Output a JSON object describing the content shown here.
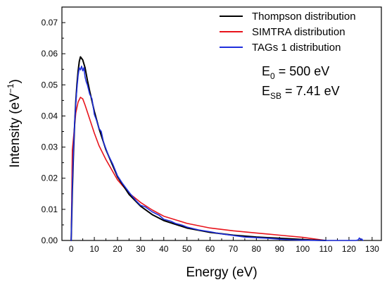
{
  "chart_data": {
    "type": "line",
    "title": "",
    "xlabel": "Energy (eV)",
    "ylabel": {
      "base": "Intensity (eV",
      "sup": "−1",
      "close": ")"
    },
    "xlim": [
      -4,
      134
    ],
    "ylim": [
      0,
      0.075
    ],
    "x_ticks": [
      0,
      10,
      20,
      30,
      40,
      50,
      60,
      70,
      80,
      90,
      100,
      110,
      120,
      130
    ],
    "y_ticks": [
      0.0,
      0.01,
      0.02,
      0.03,
      0.04,
      0.05,
      0.06,
      0.07
    ],
    "y_tick_decimals": 2,
    "grid": false,
    "legend_position": "top-right",
    "series": [
      {
        "name": "Thompson distribution",
        "color": "#000000",
        "x": [
          0,
          0.5,
          1,
          1.5,
          2,
          2.5,
          3,
          3.5,
          4,
          5,
          6,
          7,
          8,
          10,
          12,
          15,
          20,
          25,
          30,
          35,
          40,
          50,
          60,
          70,
          80,
          90,
          100,
          105,
          110
        ],
        "y": [
          0,
          0.0158,
          0.028,
          0.0375,
          0.0448,
          0.0503,
          0.0545,
          0.0575,
          0.059,
          0.058,
          0.0555,
          0.0515,
          0.048,
          0.0415,
          0.036,
          0.0292,
          0.0205,
          0.0148,
          0.011,
          0.0083,
          0.0064,
          0.004,
          0.0026,
          0.0017,
          0.0011,
          0.0007,
          0.0003,
          0.00012,
          0
        ]
      },
      {
        "name": "SIMTRA distribution",
        "color": "#e8141c",
        "x": [
          0,
          0.5,
          1,
          1.5,
          2,
          3,
          4,
          5,
          6,
          8,
          10,
          12,
          15,
          20,
          25,
          30,
          35,
          40,
          50,
          60,
          70,
          80,
          90,
          100,
          105,
          110
        ],
        "y": [
          0,
          0.029,
          0.033,
          0.037,
          0.041,
          0.0445,
          0.046,
          0.0455,
          0.0435,
          0.039,
          0.0345,
          0.0305,
          0.026,
          0.0195,
          0.0152,
          0.0122,
          0.0098,
          0.0078,
          0.0055,
          0.004,
          0.0031,
          0.0024,
          0.0017,
          0.001,
          0.0005,
          0
        ]
      },
      {
        "name": "TAGs 1 distribution",
        "color": "#1f2fdc",
        "x": [
          0,
          0.5,
          1,
          1.5,
          2,
          2.5,
          3,
          3.5,
          4,
          4.5,
          5,
          5.5,
          6,
          6.5,
          7,
          8,
          9,
          10,
          11,
          12,
          13,
          14,
          15,
          16,
          18,
          20,
          22,
          25,
          28,
          30,
          32,
          35,
          38,
          40,
          43,
          45,
          48,
          50,
          55,
          60,
          65,
          70,
          75,
          80,
          85,
          90,
          95,
          100,
          105,
          110,
          115,
          120,
          123,
          124,
          124.5,
          125,
          125.5,
          126
        ],
        "y": [
          0,
          0.018,
          0.029,
          0.038,
          0.044,
          0.049,
          0.053,
          0.0555,
          0.0548,
          0.056,
          0.0545,
          0.0555,
          0.0525,
          0.051,
          0.05,
          0.047,
          0.0455,
          0.0405,
          0.0385,
          0.036,
          0.035,
          0.0315,
          0.0295,
          0.0275,
          0.0245,
          0.0208,
          0.0185,
          0.0155,
          0.0128,
          0.0113,
          0.0108,
          0.0092,
          0.0081,
          0.0068,
          0.0062,
          0.0055,
          0.0049,
          0.0043,
          0.0034,
          0.0028,
          0.0021,
          0.0016,
          0.0011,
          0.0009,
          0.0007,
          0.0004,
          0.0002,
          0.0001,
          5e-05,
          0,
          0,
          0,
          0,
          0.0002,
          0.0008,
          0.0002,
          0.0005,
          0
        ]
      }
    ],
    "annotations": [
      {
        "main": "E",
        "sub": "0",
        "rest": " = 500 eV"
      },
      {
        "main": "E",
        "sub": "SB",
        "rest": " = 7.41 eV"
      }
    ]
  }
}
